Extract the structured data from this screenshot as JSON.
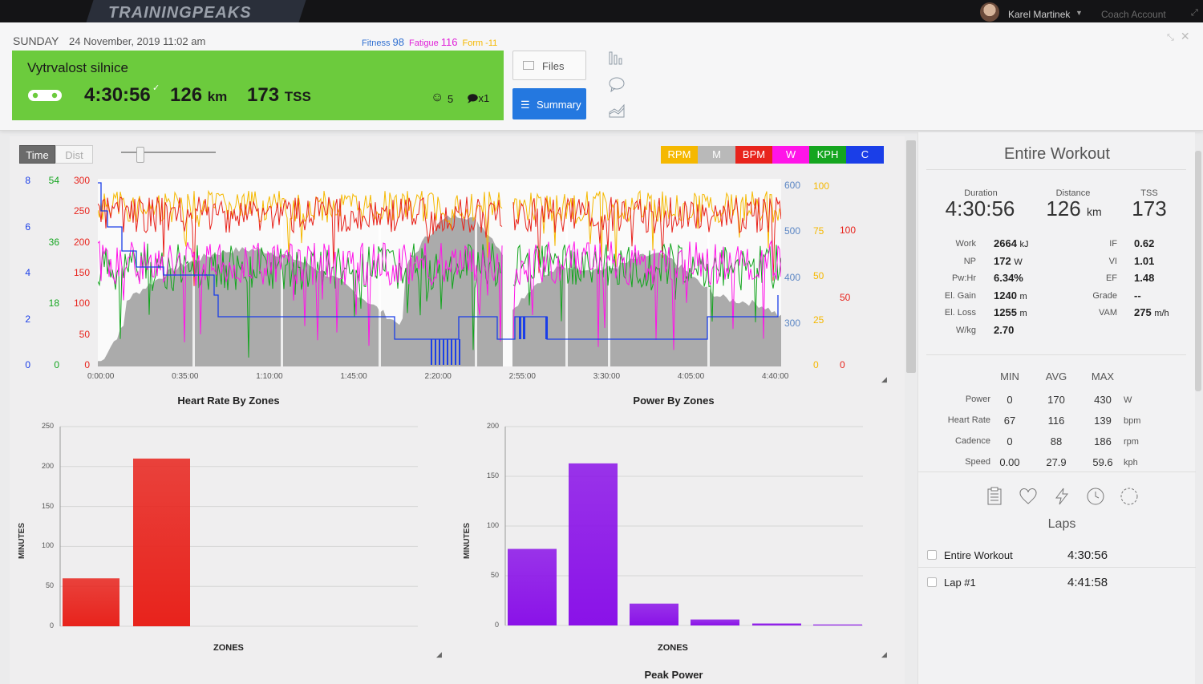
{
  "topbar": {
    "logo": "TRAININGPEAKS",
    "user_name": "Karel Martinek",
    "coach_account": "Coach Account"
  },
  "header": {
    "day": "SUNDAY",
    "date": "24 November, 2019   11:02 am",
    "fitness_label": "Fitness",
    "fitness_value": "98",
    "fatigue_label": "Fatigue",
    "fatigue_value": "116",
    "form_label": "Form",
    "form_value": "-11",
    "workout_name": "Vytrvalost silnice",
    "duration": "4:30:56",
    "distance": "126",
    "distance_unit": "km",
    "tss": "173",
    "tss_unit": "TSS",
    "feel_count": "5",
    "comment_count": "x1",
    "files_label": "Files",
    "summary_label": "Summary",
    "colors": {
      "banner": "#6ccb3d",
      "summary_button": "#2478e0"
    }
  },
  "chart_controls": {
    "time_label": "Time",
    "dist_label": "Dist",
    "channels": [
      {
        "label": "RPM",
        "color": "#f5b800"
      },
      {
        "label": "M",
        "color": "#b9b9b9"
      },
      {
        "label": "BPM",
        "color": "#e8231c"
      },
      {
        "label": "W",
        "color": "#ff14e8"
      },
      {
        "label": "KPH",
        "color": "#14a51f"
      },
      {
        "label": "C",
        "color": "#1a3ee8"
      }
    ]
  },
  "chart_data": [
    {
      "type": "line",
      "title": "",
      "x_ticks": [
        "0:00:00",
        "0:35:00",
        "1:10:00",
        "1:45:00",
        "2:20:00",
        "2:55:00",
        "3:30:00",
        "4:05:00",
        "4:40:00"
      ],
      "left_axes": [
        {
          "color": "#1a3ee8",
          "ticks": [
            "8",
            "6",
            "4",
            "2",
            "0"
          ]
        },
        {
          "color": "#14a51f",
          "ticks": [
            "54",
            "36",
            "18",
            "0"
          ]
        },
        {
          "color": "#e8231c",
          "ticks": [
            "300",
            "250",
            "200",
            "150",
            "100",
            "50",
            "0"
          ]
        }
      ],
      "right_axes": [
        {
          "color": "#5b86c4",
          "ticks": [
            "600",
            "500",
            "400",
            "300"
          ]
        },
        {
          "color": "#f5b800",
          "ticks": [
            "100",
            "75",
            "50",
            "25",
            "0"
          ]
        },
        {
          "color": "#e8231c",
          "ticks": [
            "100",
            "50",
            "0"
          ]
        }
      ]
    },
    {
      "type": "bar",
      "title": "Heart Rate By Zones",
      "xlabel": "ZONES",
      "ylabel": "MINUTES",
      "ylim": [
        0,
        250
      ],
      "y_ticks": [
        "250",
        "200",
        "150",
        "100",
        "50",
        "0"
      ],
      "values": [
        60,
        210
      ],
      "color": "#e8231c"
    },
    {
      "type": "bar",
      "title": "Power By Zones",
      "xlabel": "ZONES",
      "ylabel": "MINUTES",
      "ylim": [
        0,
        200
      ],
      "y_ticks": [
        "200",
        "150",
        "100",
        "50",
        "0"
      ],
      "values": [
        77,
        163,
        22,
        6,
        2,
        1
      ],
      "color": "#8a12e8"
    }
  ],
  "peak_power_title": "Peak Power",
  "summary": {
    "title": "Entire Workout",
    "kpis": [
      {
        "label": "Duration",
        "value": "4:30:56",
        "unit": ""
      },
      {
        "label": "Distance",
        "value": "126",
        "unit": "km"
      },
      {
        "label": "TSS",
        "value": "173",
        "unit": ""
      }
    ],
    "left_stats": [
      {
        "label": "Work",
        "value": "2664",
        "unit": "kJ"
      },
      {
        "label": "NP",
        "value": "172",
        "unit": "W"
      },
      {
        "label": "Pw:Hr",
        "value": "6.34%",
        "unit": ""
      },
      {
        "label": "El. Gain",
        "value": "1240",
        "unit": "m"
      },
      {
        "label": "El. Loss",
        "value": "1255",
        "unit": "m"
      },
      {
        "label": "W/kg",
        "value": "2.70",
        "unit": ""
      }
    ],
    "right_stats": [
      {
        "label": "IF",
        "value": "0.62",
        "unit": ""
      },
      {
        "label": "VI",
        "value": "1.01",
        "unit": ""
      },
      {
        "label": "EF",
        "value": "1.48",
        "unit": ""
      },
      {
        "label": "Grade",
        "value": "--",
        "unit": ""
      },
      {
        "label": "VAM",
        "value": "275",
        "unit": "m/h"
      }
    ],
    "minmax_headers": [
      "MIN",
      "AVG",
      "MAX"
    ],
    "minmax_rows": [
      {
        "label": "Power",
        "min": "0",
        "avg": "170",
        "max": "430",
        "unit": "W"
      },
      {
        "label": "Heart Rate",
        "min": "67",
        "avg": "116",
        "max": "139",
        "unit": "bpm"
      },
      {
        "label": "Cadence",
        "min": "0",
        "avg": "88",
        "max": "186",
        "unit": "rpm"
      },
      {
        "label": "Speed",
        "min": "0.00",
        "avg": "27.9",
        "max": "59.6",
        "unit": "kph"
      }
    ],
    "laps_title": "Laps",
    "laps": [
      {
        "name": "Entire Workout",
        "time": "4:30:56"
      },
      {
        "name": "Lap #1",
        "time": "4:41:58"
      }
    ]
  }
}
